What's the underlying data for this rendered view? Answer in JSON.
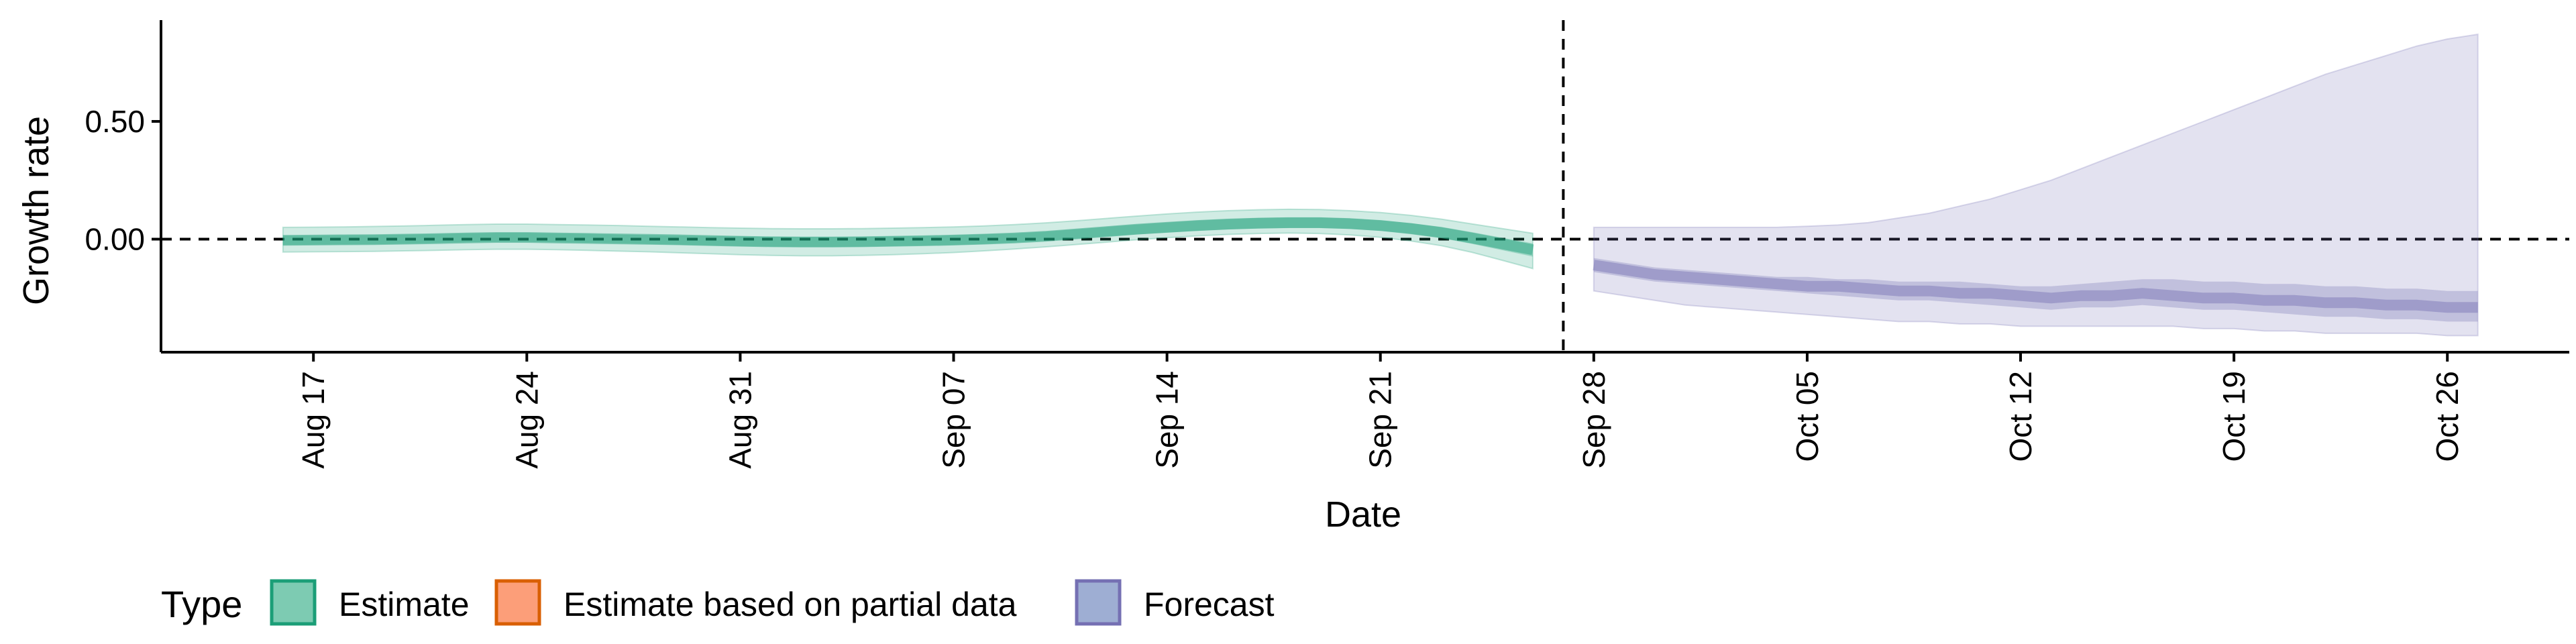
{
  "chart_data": {
    "type": "area",
    "xlabel": "Date",
    "ylabel": "Growth rate",
    "x_ticks": [
      "Aug 17",
      "Aug 24",
      "Aug 31",
      "Sep 07",
      "Sep 14",
      "Sep 21",
      "Sep 28",
      "Oct 05",
      "Oct 12",
      "Oct 19",
      "Oct 26"
    ],
    "y_ticks": [
      "0.00",
      "0.50"
    ],
    "ylim": [
      -0.48,
      0.93
    ],
    "xlim": [
      "2020-08-12",
      "2020-10-30"
    ],
    "reference_lines": {
      "horizontal_y": 0,
      "vertical_x": "2020-09-27",
      "style": "dashed"
    },
    "legend": {
      "title": "Type",
      "position": "bottom-left",
      "entries": [
        {
          "label": "Estimate",
          "fill": "#66c2a5",
          "stroke": "#1b9e77"
        },
        {
          "label": "Estimate based on partial data",
          "fill": "#fc8d62",
          "stroke": "#d95f02"
        },
        {
          "label": "Forecast",
          "fill": "#8da0cb",
          "stroke": "#7570b3"
        }
      ]
    },
    "series": [
      {
        "name": "Estimate",
        "color": "#1b9e77",
        "x_start": "2020-08-16",
        "x_end": "2020-09-26",
        "median": [
          -0.005,
          -0.004,
          -0.003,
          -0.002,
          0.0,
          0.002,
          0.005,
          0.007,
          0.007,
          0.005,
          0.003,
          0.001,
          -0.001,
          -0.003,
          -0.006,
          -0.009,
          -0.011,
          -0.012,
          -0.012,
          -0.011,
          -0.009,
          -0.007,
          -0.004,
          0.0,
          0.005,
          0.012,
          0.022,
          0.032,
          0.042,
          0.05,
          0.058,
          0.064,
          0.068,
          0.07,
          0.07,
          0.066,
          0.058,
          0.045,
          0.028,
          0.005,
          -0.02,
          -0.045
        ],
        "lower50": [
          -0.025,
          -0.024,
          -0.023,
          -0.022,
          -0.02,
          -0.017,
          -0.014,
          -0.012,
          -0.012,
          -0.014,
          -0.016,
          -0.018,
          -0.021,
          -0.024,
          -0.027,
          -0.03,
          -0.032,
          -0.033,
          -0.033,
          -0.032,
          -0.03,
          -0.028,
          -0.025,
          -0.021,
          -0.015,
          -0.008,
          0.002,
          0.011,
          0.02,
          0.028,
          0.035,
          0.041,
          0.045,
          0.047,
          0.047,
          0.043,
          0.035,
          0.021,
          0.004,
          -0.02,
          -0.047,
          -0.074
        ],
        "upper50": [
          0.015,
          0.016,
          0.017,
          0.018,
          0.02,
          0.022,
          0.025,
          0.027,
          0.027,
          0.025,
          0.023,
          0.02,
          0.018,
          0.016,
          0.014,
          0.012,
          0.01,
          0.009,
          0.009,
          0.01,
          0.012,
          0.014,
          0.017,
          0.021,
          0.025,
          0.032,
          0.042,
          0.052,
          0.062,
          0.071,
          0.079,
          0.085,
          0.09,
          0.092,
          0.092,
          0.088,
          0.08,
          0.068,
          0.052,
          0.03,
          0.006,
          -0.018
        ],
        "lower90": [
          -0.055,
          -0.054,
          -0.053,
          -0.052,
          -0.05,
          -0.048,
          -0.045,
          -0.043,
          -0.043,
          -0.045,
          -0.048,
          -0.051,
          -0.054,
          -0.058,
          -0.062,
          -0.066,
          -0.069,
          -0.071,
          -0.071,
          -0.069,
          -0.066,
          -0.062,
          -0.057,
          -0.05,
          -0.042,
          -0.033,
          -0.023,
          -0.013,
          -0.003,
          0.006,
          0.014,
          0.02,
          0.024,
          0.026,
          0.024,
          0.018,
          0.008,
          -0.008,
          -0.028,
          -0.056,
          -0.09,
          -0.125
        ],
        "upper90": [
          0.05,
          0.051,
          0.052,
          0.054,
          0.056,
          0.059,
          0.062,
          0.064,
          0.064,
          0.062,
          0.06,
          0.058,
          0.055,
          0.052,
          0.049,
          0.047,
          0.045,
          0.044,
          0.044,
          0.045,
          0.047,
          0.049,
          0.052,
          0.056,
          0.062,
          0.069,
          0.078,
          0.088,
          0.098,
          0.107,
          0.115,
          0.121,
          0.125,
          0.127,
          0.126,
          0.121,
          0.113,
          0.101,
          0.085,
          0.065,
          0.045,
          0.025
        ]
      },
      {
        "name": "Forecast",
        "color": "#7570b3",
        "x_start": "2020-09-28",
        "x_end": "2020-10-27",
        "median": [
          -0.11,
          -0.13,
          -0.15,
          -0.16,
          -0.17,
          -0.18,
          -0.19,
          -0.2,
          -0.2,
          -0.21,
          -0.22,
          -0.22,
          -0.23,
          -0.23,
          -0.24,
          -0.25,
          -0.24,
          -0.24,
          -0.23,
          -0.24,
          -0.25,
          -0.25,
          -0.26,
          -0.26,
          -0.27,
          -0.27,
          -0.28,
          -0.28,
          -0.29,
          -0.29
        ],
        "lower50": [
          -0.14,
          -0.16,
          -0.18,
          -0.19,
          -0.2,
          -0.21,
          -0.22,
          -0.23,
          -0.24,
          -0.25,
          -0.26,
          -0.26,
          -0.27,
          -0.28,
          -0.29,
          -0.3,
          -0.29,
          -0.29,
          -0.28,
          -0.29,
          -0.3,
          -0.3,
          -0.31,
          -0.32,
          -0.33,
          -0.33,
          -0.34,
          -0.34,
          -0.35,
          -0.35
        ],
        "upper50": [
          -0.08,
          -0.1,
          -0.12,
          -0.13,
          -0.14,
          -0.15,
          -0.16,
          -0.16,
          -0.17,
          -0.17,
          -0.18,
          -0.18,
          -0.18,
          -0.19,
          -0.2,
          -0.2,
          -0.19,
          -0.18,
          -0.17,
          -0.17,
          -0.18,
          -0.18,
          -0.19,
          -0.19,
          -0.2,
          -0.2,
          -0.21,
          -0.21,
          -0.22,
          -0.22
        ],
        "lower90": [
          -0.22,
          -0.24,
          -0.26,
          -0.28,
          -0.29,
          -0.3,
          -0.31,
          -0.32,
          -0.33,
          -0.34,
          -0.35,
          -0.35,
          -0.36,
          -0.36,
          -0.37,
          -0.37,
          -0.37,
          -0.37,
          -0.37,
          -0.37,
          -0.38,
          -0.38,
          -0.39,
          -0.39,
          -0.4,
          -0.4,
          -0.4,
          -0.4,
          -0.41,
          -0.41
        ],
        "upper90": [
          0.05,
          0.05,
          0.05,
          0.05,
          0.05,
          0.05,
          0.05,
          0.055,
          0.06,
          0.07,
          0.09,
          0.11,
          0.14,
          0.17,
          0.21,
          0.25,
          0.3,
          0.35,
          0.4,
          0.45,
          0.5,
          0.55,
          0.6,
          0.65,
          0.7,
          0.74,
          0.78,
          0.82,
          0.85,
          0.87
        ]
      }
    ]
  }
}
